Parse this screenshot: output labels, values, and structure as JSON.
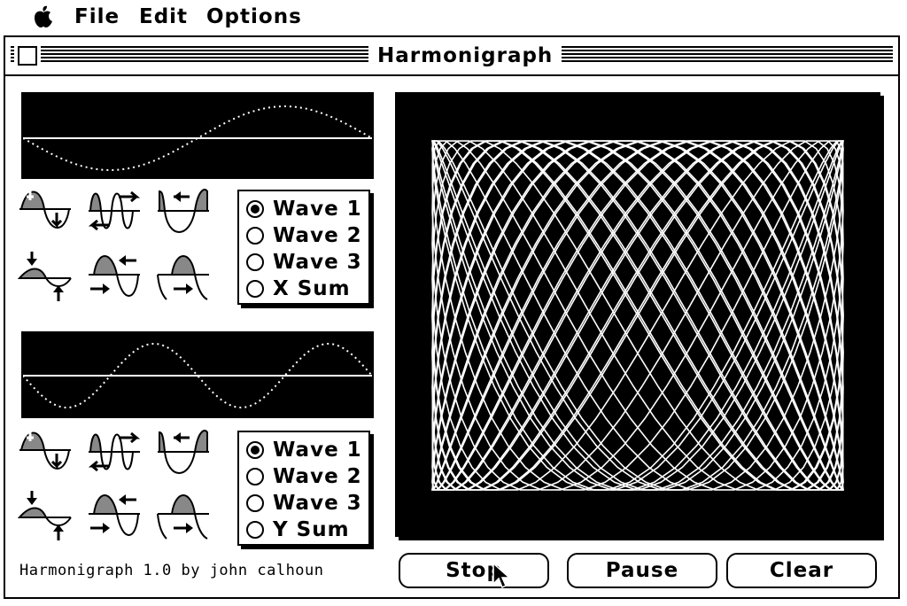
{
  "menubar": {
    "apple_icon": "apple-icon",
    "items": [
      {
        "label": "File"
      },
      {
        "label": "Edit"
      },
      {
        "label": "Options"
      }
    ]
  },
  "window": {
    "title": "Harmonigraph"
  },
  "x_panel": {
    "radios": [
      {
        "label": "Wave 1",
        "selected": true
      },
      {
        "label": "Wave 2",
        "selected": false
      },
      {
        "label": "Wave 3",
        "selected": false
      },
      {
        "label": "X Sum",
        "selected": false
      }
    ],
    "icons": [
      "phase-icon",
      "frequency-icon",
      "frequency-decrease-icon",
      "amplitude-icon",
      "shift-left-icon",
      "shift-right-icon"
    ]
  },
  "y_panel": {
    "radios": [
      {
        "label": "Wave 1",
        "selected": true
      },
      {
        "label": "Wave 2",
        "selected": false
      },
      {
        "label": "Wave 3",
        "selected": false
      },
      {
        "label": "Y Sum",
        "selected": false
      }
    ],
    "icons": [
      "phase-icon",
      "frequency-icon",
      "frequency-decrease-icon",
      "amplitude-icon",
      "shift-left-icon",
      "shift-right-icon"
    ]
  },
  "buttons": {
    "stop": "Stop",
    "pause": "Pause",
    "clear": "Clear"
  },
  "credit": "Harmonigraph 1.0 by john calhoun",
  "colors": {
    "foreground": "#000000",
    "background": "#ffffff"
  }
}
